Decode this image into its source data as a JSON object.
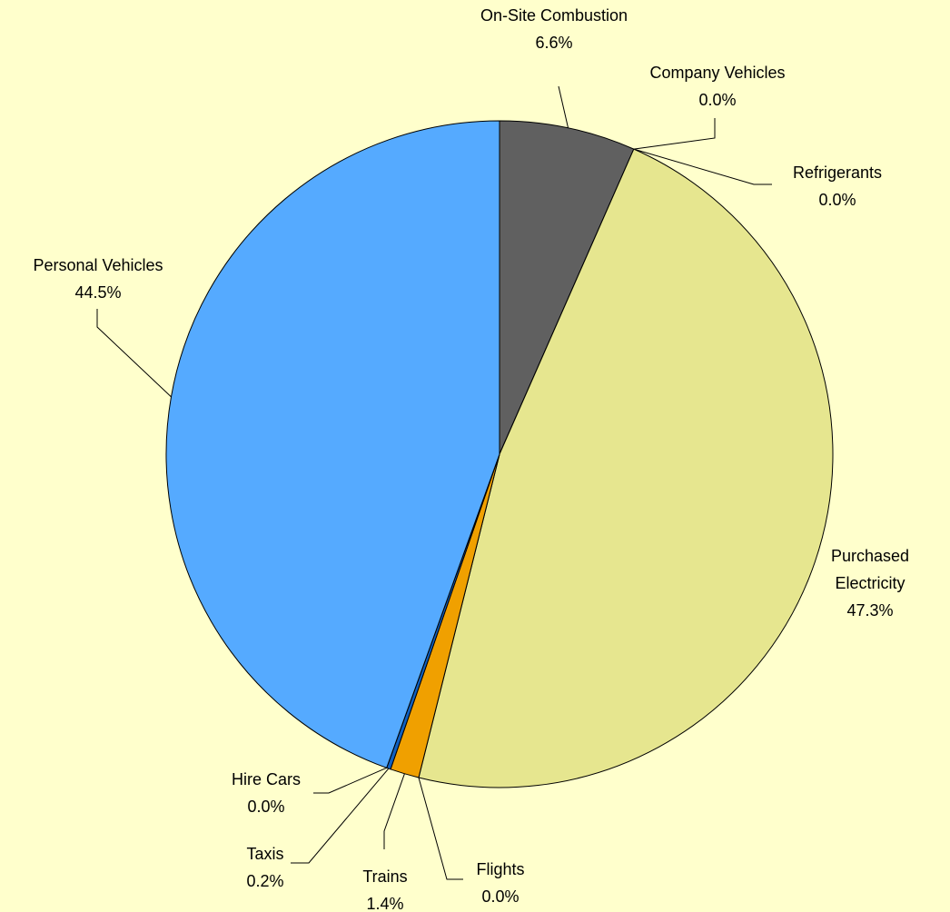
{
  "chart_data": {
    "type": "pie",
    "categories": [
      "On-Site Combustion",
      "Company Vehicles",
      "Refrigerants",
      "Purchased Electricity",
      "Flights",
      "Trains",
      "Taxis",
      "Hire Cars",
      "Personal Vehicles"
    ],
    "values": [
      6.6,
      0.0,
      0.0,
      47.3,
      0.0,
      1.4,
      0.2,
      0.0,
      44.5
    ],
    "value_labels": [
      "6.6%",
      "0.0%",
      "0.0%",
      "47.3%",
      "0.0%",
      "1.4%",
      "0.2%",
      "0.0%",
      "44.5%"
    ],
    "colors": [
      "#606060",
      "#707070",
      "#808080",
      "#e6e68f",
      "#c08000",
      "#f0a000",
      "#1060c0",
      "#3080e0",
      "#55aaff"
    ]
  }
}
